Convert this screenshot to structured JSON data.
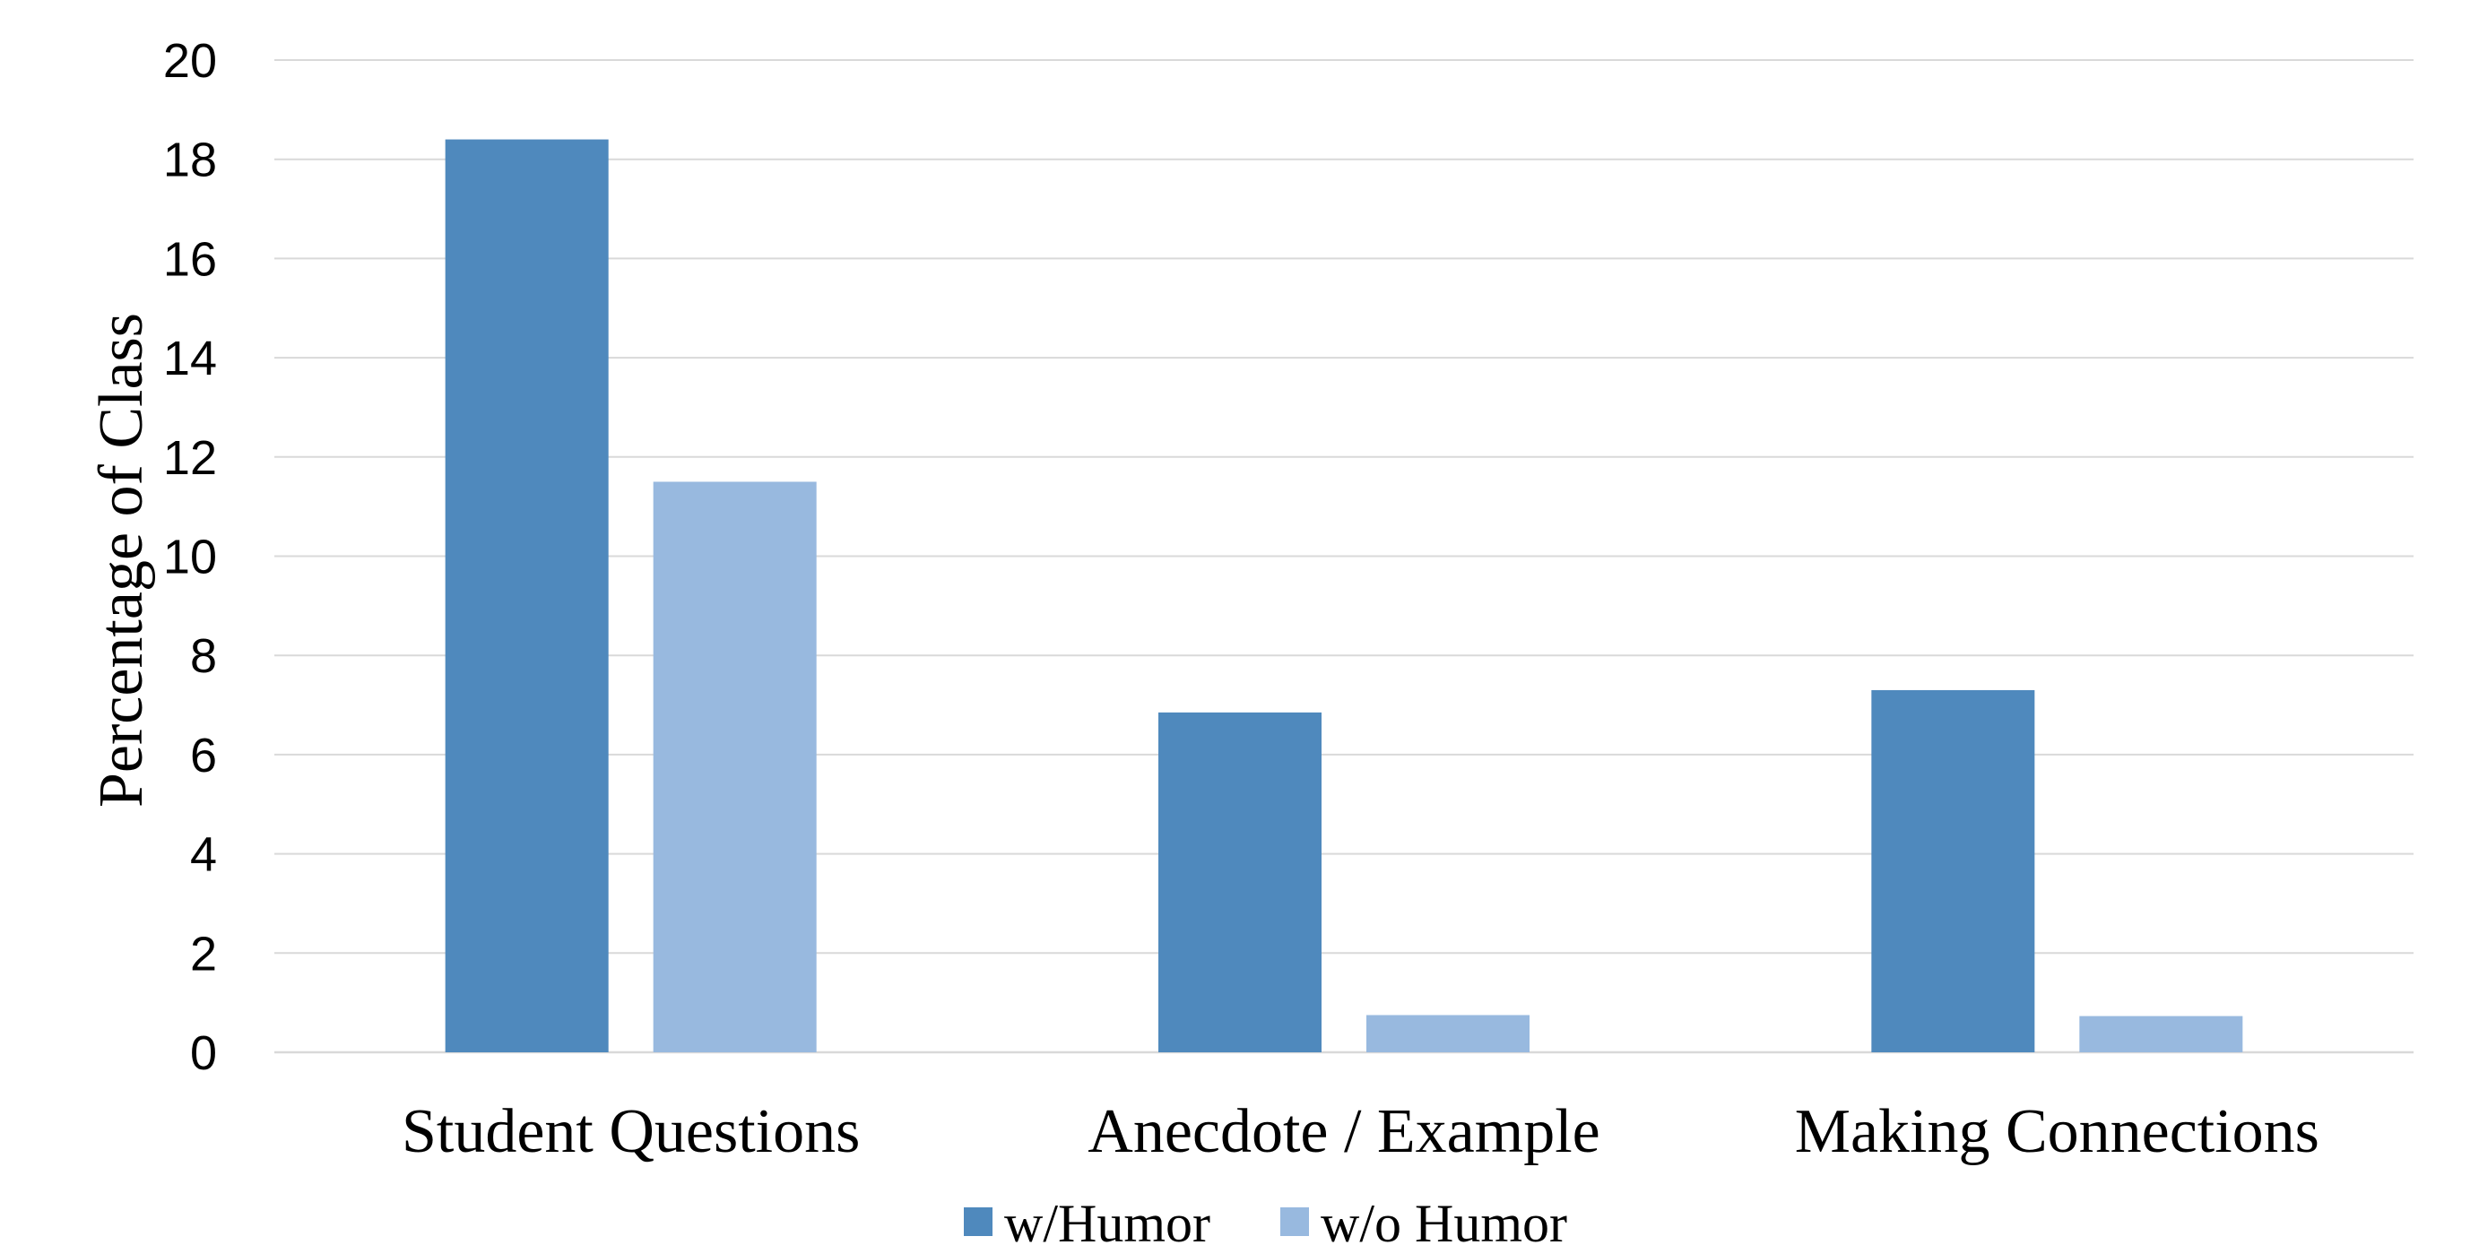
{
  "chart_data": {
    "type": "bar",
    "title": "",
    "xlabel": "",
    "ylabel": "Percentage of Class",
    "ylim": [
      0,
      20
    ],
    "yticks": [
      0,
      2,
      4,
      6,
      8,
      10,
      12,
      14,
      16,
      18,
      20
    ],
    "grid": true,
    "legend_position": "bottom",
    "categories": [
      "Student Questions",
      "Anecdote / Example",
      "Making Connections"
    ],
    "series": [
      {
        "name": "w/Humor",
        "color": "#4f89bd",
        "values": [
          18.4,
          6.85,
          7.3
        ]
      },
      {
        "name": "w/o Humor",
        "color": "#98b9df",
        "values": [
          11.5,
          0.75,
          0.73
        ]
      }
    ]
  }
}
